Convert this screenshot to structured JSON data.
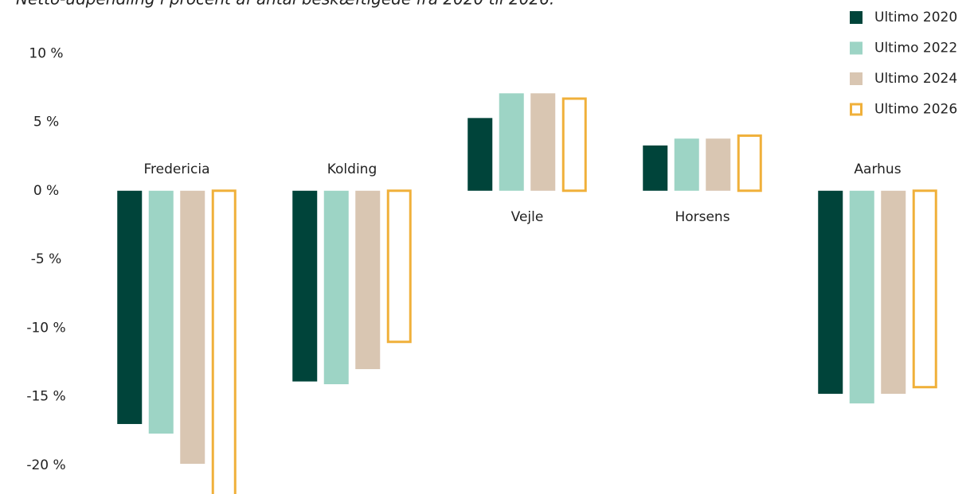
{
  "chart_data": {
    "type": "bar",
    "title": "Netto-udpendling i procent af antal beskæftigede fra 2020 til 2026.",
    "categories": [
      "Fredericia",
      "Kolding",
      "Vejle",
      "Horsens",
      "Aarhus"
    ],
    "series": [
      {
        "name": "Ultimo 2020",
        "color": "#00443a",
        "values": [
          -17.0,
          -13.9,
          5.3,
          3.3,
          -14.8
        ]
      },
      {
        "name": "Ultimo 2022",
        "color": "#9dd4c5",
        "values": [
          -17.7,
          -14.1,
          7.1,
          3.8,
          -15.5
        ]
      },
      {
        "name": "Ultimo 2024",
        "color": "#d9c6b2",
        "values": [
          -19.9,
          -13.0,
          7.1,
          3.8,
          -14.8
        ]
      },
      {
        "name": "Ultimo 2026",
        "color": "#f0b03a",
        "outline": true,
        "values": [
          -22.5,
          -11.1,
          6.8,
          4.1,
          -14.4
        ]
      }
    ],
    "ylim": [
      -22.1,
      13.9
    ],
    "yticks": [
      {
        "value": 10,
        "label": "10 %"
      },
      {
        "value": 5,
        "label": "5 %"
      },
      {
        "value": 0,
        "label": "0 %"
      },
      {
        "value": -5,
        "label": "-5 %"
      },
      {
        "value": -10,
        "label": "-10 %"
      },
      {
        "value": -15,
        "label": "-15 %"
      },
      {
        "value": -20,
        "label": "-20 %"
      }
    ],
    "legend": "top-right"
  }
}
